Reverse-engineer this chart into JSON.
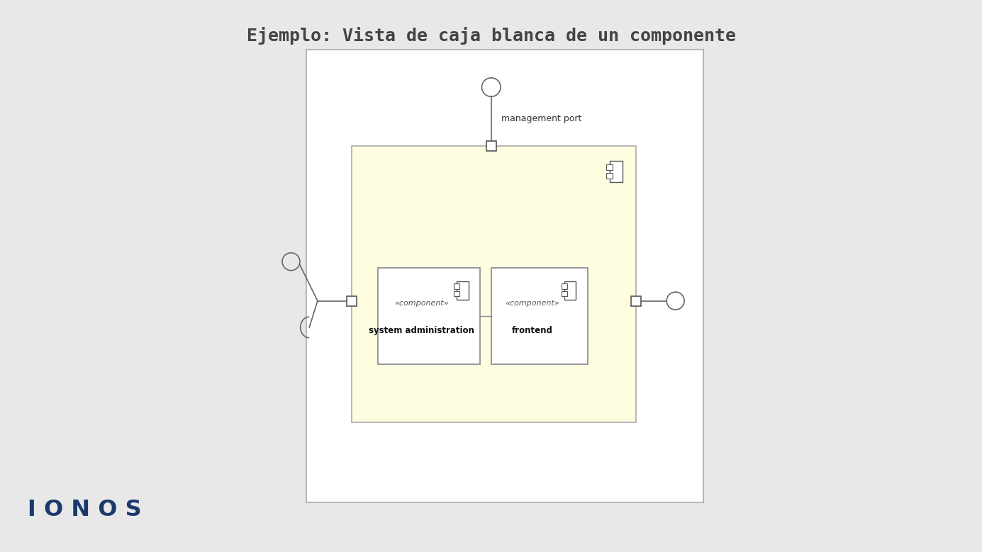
{
  "title": "Ejemplo: Vista de caja blanca de un componente",
  "title_fontsize": 18,
  "title_color": "#444444",
  "bg_color": "#e8e8e8",
  "canvas_bg": "#ffffff",
  "inner_box_color": "#fffde0",
  "component_color": "#ffffff",
  "ionos_color": "#1a3a6b",
  "management_port_label": "management port",
  "sysadmin_label_stereo": "«component»",
  "sysadmin_label": "system administration",
  "frontend_label_stereo": "«component»",
  "frontend_label": "frontend",
  "line_color": "#666666",
  "border_color": "#888888"
}
